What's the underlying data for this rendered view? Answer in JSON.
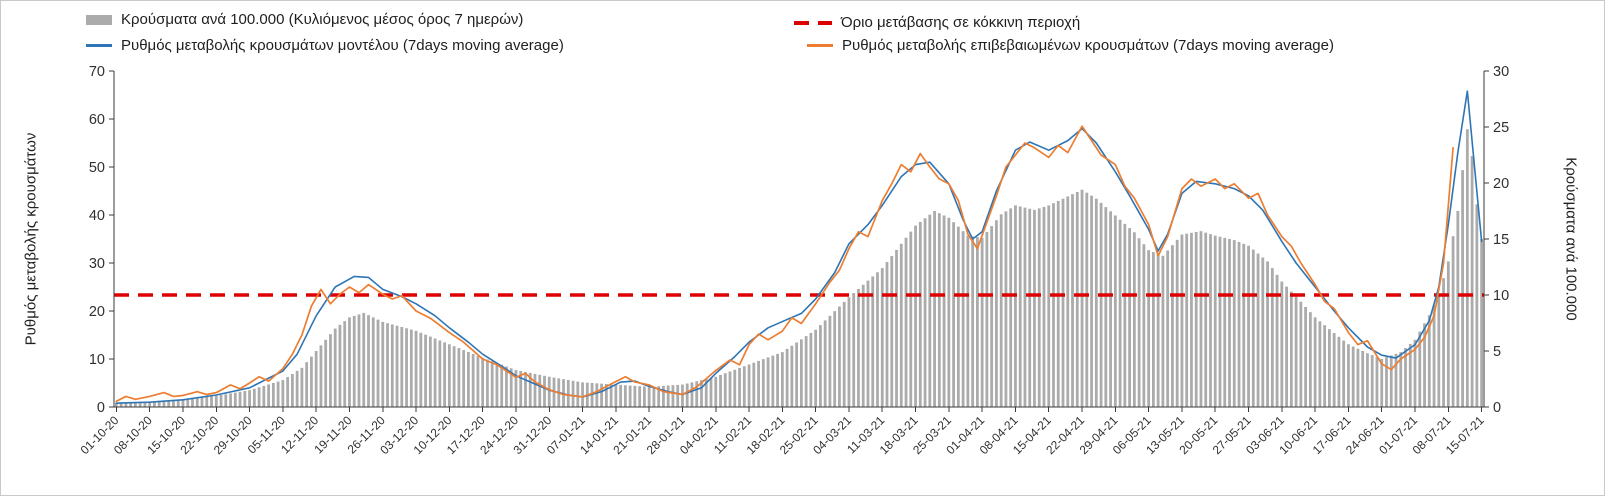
{
  "legend": {
    "bars_label": "Κρούσματα ανά 100.000 (Κυλιόμενος μέσος όρος 7 ημερών)",
    "threshold_label": "Όριο μετάβασης σε κόκκινη περιοχή",
    "model_label": "Ρυθμός μεταβολής κρουσμάτων μοντέλου (7days moving average)",
    "confirmed_label": "Ρυθμός μεταβολής επιβεβαιωμένων κρουσμάτων (7days moving average)"
  },
  "axes": {
    "left_title": "Ρυθμός μεταβολής κρουσμάτων",
    "right_title": "Κρούσματα ανά 100.000",
    "left_ticks": [
      0,
      10,
      20,
      30,
      40,
      50,
      60,
      70
    ],
    "right_ticks": [
      0,
      5,
      10,
      15,
      20,
      25,
      30
    ],
    "left_range": [
      0,
      70
    ],
    "right_range": [
      0,
      30
    ]
  },
  "colors": {
    "bars": "#ababab",
    "model": "#2e75b6",
    "confirmed": "#ed7d31",
    "threshold": "#dd0000",
    "axis": "#3a3a3a",
    "tick_text": "#303030"
  },
  "chart_data": {
    "type": "bar+line",
    "x_unit": "days since 01-10-20",
    "x_tick_step_days": 7,
    "x_tick_labels": [
      "01-10-20",
      "08-10-20",
      "15-10-20",
      "22-10-20",
      "29-10-20",
      "05-11-20",
      "12-11-20",
      "19-11-20",
      "26-11-20",
      "03-12-20",
      "10-12-20",
      "17-12-20",
      "24-12-20",
      "31-12-20",
      "07-01-21",
      "14-01-21",
      "21-01-21",
      "28-01-21",
      "04-02-21",
      "11-02-21",
      "18-02-21",
      "25-02-21",
      "04-03-21",
      "11-03-21",
      "18-03-21",
      "25-03-21",
      "01-04-21",
      "08-04-21",
      "15-04-21",
      "22-04-21",
      "29-04-21",
      "06-05-21",
      "13-05-21",
      "20-05-21",
      "27-05-21",
      "03-06-21",
      "10-06-21",
      "17-06-21",
      "24-06-21",
      "01-07-21",
      "08-07-21",
      "15-07-21"
    ],
    "threshold": {
      "right_axis_value": 10,
      "left_axis_value": 23.3
    },
    "series": [
      {
        "name": "cases_per_100k_7day_ma",
        "type": "bar",
        "axis": "right",
        "points": [
          [
            0,
            0.4
          ],
          [
            7,
            0.5
          ],
          [
            14,
            0.7
          ],
          [
            21,
            1.0
          ],
          [
            28,
            1.5
          ],
          [
            35,
            2.4
          ],
          [
            39,
            3.5
          ],
          [
            42,
            5.0
          ],
          [
            46,
            7.0
          ],
          [
            49,
            8.0
          ],
          [
            52,
            8.4
          ],
          [
            56,
            7.6
          ],
          [
            63,
            6.8
          ],
          [
            70,
            5.6
          ],
          [
            77,
            4.4
          ],
          [
            84,
            3.3
          ],
          [
            91,
            2.7
          ],
          [
            98,
            2.2
          ],
          [
            105,
            2.0
          ],
          [
            112,
            1.8
          ],
          [
            119,
            2.0
          ],
          [
            126,
            2.7
          ],
          [
            133,
            3.8
          ],
          [
            140,
            4.9
          ],
          [
            147,
            6.9
          ],
          [
            154,
            9.8
          ],
          [
            161,
            12.4
          ],
          [
            168,
            16.2
          ],
          [
            172,
            17.5
          ],
          [
            175,
            16.9
          ],
          [
            179,
            15.3
          ],
          [
            182,
            15.1
          ],
          [
            186,
            17.2
          ],
          [
            189,
            18.0
          ],
          [
            193,
            17.6
          ],
          [
            196,
            18.0
          ],
          [
            200,
            18.8
          ],
          [
            203,
            19.4
          ],
          [
            206,
            18.6
          ],
          [
            210,
            17.1
          ],
          [
            214,
            15.6
          ],
          [
            217,
            14.0
          ],
          [
            220,
            13.5
          ],
          [
            224,
            15.4
          ],
          [
            228,
            15.7
          ],
          [
            231,
            15.3
          ],
          [
            235,
            14.9
          ],
          [
            238,
            14.4
          ],
          [
            242,
            13.0
          ],
          [
            245,
            11.2
          ],
          [
            249,
            9.4
          ],
          [
            252,
            8.0
          ],
          [
            256,
            6.6
          ],
          [
            259,
            5.6
          ],
          [
            263,
            4.8
          ],
          [
            266,
            4.3
          ],
          [
            270,
            4.9
          ],
          [
            273,
            6.0
          ],
          [
            276,
            8.2
          ],
          [
            278,
            10.0
          ],
          [
            280,
            13.0
          ],
          [
            282,
            17.5
          ],
          [
            284,
            24.8
          ],
          [
            285,
            22.4
          ],
          [
            286,
            18.1
          ],
          [
            287,
            15.0
          ]
        ]
      },
      {
        "name": "model_rate_of_change_7day_ma",
        "type": "line",
        "axis": "left",
        "points": [
          [
            0,
            0.8
          ],
          [
            7,
            1.0
          ],
          [
            14,
            1.5
          ],
          [
            21,
            2.5
          ],
          [
            28,
            4.0
          ],
          [
            35,
            7.5
          ],
          [
            38,
            11
          ],
          [
            42,
            19
          ],
          [
            46,
            25
          ],
          [
            50,
            27.2
          ],
          [
            53,
            27
          ],
          [
            56,
            24.5
          ],
          [
            60,
            23
          ],
          [
            63,
            21.5
          ],
          [
            67,
            19
          ],
          [
            70,
            16.5
          ],
          [
            74,
            13.5
          ],
          [
            77,
            11
          ],
          [
            81,
            8.5
          ],
          [
            84,
            6.5
          ],
          [
            88,
            4.8
          ],
          [
            91,
            3.5
          ],
          [
            95,
            2.5
          ],
          [
            98,
            2.1
          ],
          [
            102,
            3.2
          ],
          [
            106,
            5.2
          ],
          [
            109,
            5.4
          ],
          [
            112,
            4.3
          ],
          [
            116,
            3.2
          ],
          [
            119,
            2.6
          ],
          [
            123,
            4.0
          ],
          [
            126,
            7.0
          ],
          [
            130,
            10.5
          ],
          [
            133,
            13.5
          ],
          [
            137,
            16.5
          ],
          [
            140,
            17.8
          ],
          [
            144,
            19.5
          ],
          [
            147,
            22.5
          ],
          [
            151,
            28
          ],
          [
            154,
            34
          ],
          [
            158,
            38
          ],
          [
            161,
            42
          ],
          [
            165,
            48
          ],
          [
            168,
            50.5
          ],
          [
            171,
            51
          ],
          [
            175,
            46.5
          ],
          [
            178,
            39
          ],
          [
            180,
            35
          ],
          [
            182,
            36.5
          ],
          [
            185,
            45
          ],
          [
            189,
            53.5
          ],
          [
            192,
            55.2
          ],
          [
            196,
            53.5
          ],
          [
            200,
            55.5
          ],
          [
            203,
            58
          ],
          [
            206,
            55
          ],
          [
            210,
            49
          ],
          [
            213,
            44
          ],
          [
            217,
            37
          ],
          [
            219,
            32.5
          ],
          [
            221,
            36
          ],
          [
            224,
            44.5
          ],
          [
            227,
            47
          ],
          [
            231,
            46.5
          ],
          [
            235,
            45.5
          ],
          [
            238,
            44
          ],
          [
            241,
            41
          ],
          [
            245,
            34.5
          ],
          [
            248,
            30
          ],
          [
            252,
            25
          ],
          [
            256,
            20
          ],
          [
            259,
            16.5
          ],
          [
            263,
            12.5
          ],
          [
            266,
            10.8
          ],
          [
            269,
            10.2
          ],
          [
            273,
            13
          ],
          [
            276,
            18
          ],
          [
            278,
            25
          ],
          [
            280,
            38
          ],
          [
            282,
            53
          ],
          [
            284,
            65.8
          ],
          [
            287,
            34.5
          ]
        ]
      },
      {
        "name": "confirmed_rate_of_change_7day_ma",
        "type": "line",
        "axis": "left",
        "points": [
          [
            0,
            1.2
          ],
          [
            2,
            2.2
          ],
          [
            4,
            1.6
          ],
          [
            7,
            2.2
          ],
          [
            10,
            3.0
          ],
          [
            12,
            2.2
          ],
          [
            14,
            2.4
          ],
          [
            17,
            3.2
          ],
          [
            19,
            2.6
          ],
          [
            21,
            3.0
          ],
          [
            24,
            4.6
          ],
          [
            26,
            3.8
          ],
          [
            28,
            5.0
          ],
          [
            30,
            6.3
          ],
          [
            32,
            5.4
          ],
          [
            35,
            8.0
          ],
          [
            37,
            11
          ],
          [
            39,
            15
          ],
          [
            41,
            21
          ],
          [
            43,
            24.5
          ],
          [
            45,
            21.5
          ],
          [
            47,
            23.5
          ],
          [
            49,
            25
          ],
          [
            51,
            23.8
          ],
          [
            53,
            25.5
          ],
          [
            56,
            23.5
          ],
          [
            58,
            22.5
          ],
          [
            60,
            23.2
          ],
          [
            63,
            20
          ],
          [
            66,
            18.5
          ],
          [
            70,
            15.5
          ],
          [
            73,
            13.5
          ],
          [
            77,
            10
          ],
          [
            80,
            8.8
          ],
          [
            82,
            7.5
          ],
          [
            84,
            6.2
          ],
          [
            86,
            7.0
          ],
          [
            88,
            5.2
          ],
          [
            91,
            3.6
          ],
          [
            94,
            2.6
          ],
          [
            98,
            2.1
          ],
          [
            101,
            3.2
          ],
          [
            104,
            4.8
          ],
          [
            107,
            6.3
          ],
          [
            109,
            5.2
          ],
          [
            112,
            4.6
          ],
          [
            115,
            3.2
          ],
          [
            119,
            2.6
          ],
          [
            122,
            4.2
          ],
          [
            126,
            7.6
          ],
          [
            129,
            9.8
          ],
          [
            131,
            8.8
          ],
          [
            133,
            13
          ],
          [
            135,
            15.2
          ],
          [
            137,
            14
          ],
          [
            140,
            15.8
          ],
          [
            142,
            18.6
          ],
          [
            144,
            17.4
          ],
          [
            147,
            21.5
          ],
          [
            150,
            26
          ],
          [
            152,
            28.5
          ],
          [
            154,
            33
          ],
          [
            156,
            36.5
          ],
          [
            158,
            35.5
          ],
          [
            161,
            43
          ],
          [
            163,
            46.5
          ],
          [
            165,
            50.5
          ],
          [
            167,
            49
          ],
          [
            169,
            52.8
          ],
          [
            171,
            50
          ],
          [
            173,
            47.5
          ],
          [
            175,
            46.5
          ],
          [
            177,
            43
          ],
          [
            179,
            36
          ],
          [
            181,
            33
          ],
          [
            183,
            38.5
          ],
          [
            185,
            44
          ],
          [
            187,
            50
          ],
          [
            189,
            52.5
          ],
          [
            191,
            55
          ],
          [
            193,
            54
          ],
          [
            196,
            52
          ],
          [
            198,
            54.5
          ],
          [
            200,
            53
          ],
          [
            203,
            58.5
          ],
          [
            205,
            55.5
          ],
          [
            207,
            52.5
          ],
          [
            210,
            50.5
          ],
          [
            212,
            46
          ],
          [
            214,
            43.5
          ],
          [
            217,
            38
          ],
          [
            219,
            31.5
          ],
          [
            221,
            35.5
          ],
          [
            224,
            45.5
          ],
          [
            226,
            47.5
          ],
          [
            228,
            46
          ],
          [
            231,
            47.5
          ],
          [
            233,
            45.5
          ],
          [
            235,
            46.5
          ],
          [
            238,
            43.5
          ],
          [
            240,
            44.5
          ],
          [
            242,
            40
          ],
          [
            245,
            35.5
          ],
          [
            247,
            33.5
          ],
          [
            249,
            30
          ],
          [
            252,
            25.5
          ],
          [
            254,
            22
          ],
          [
            256,
            20.5
          ],
          [
            259,
            15.5
          ],
          [
            261,
            13
          ],
          [
            263,
            13.8
          ],
          [
            266,
            9
          ],
          [
            268,
            7.8
          ],
          [
            270,
            10
          ],
          [
            273,
            12
          ],
          [
            275,
            14.5
          ],
          [
            277,
            19
          ],
          [
            279,
            30
          ],
          [
            281,
            54
          ]
        ]
      }
    ]
  }
}
